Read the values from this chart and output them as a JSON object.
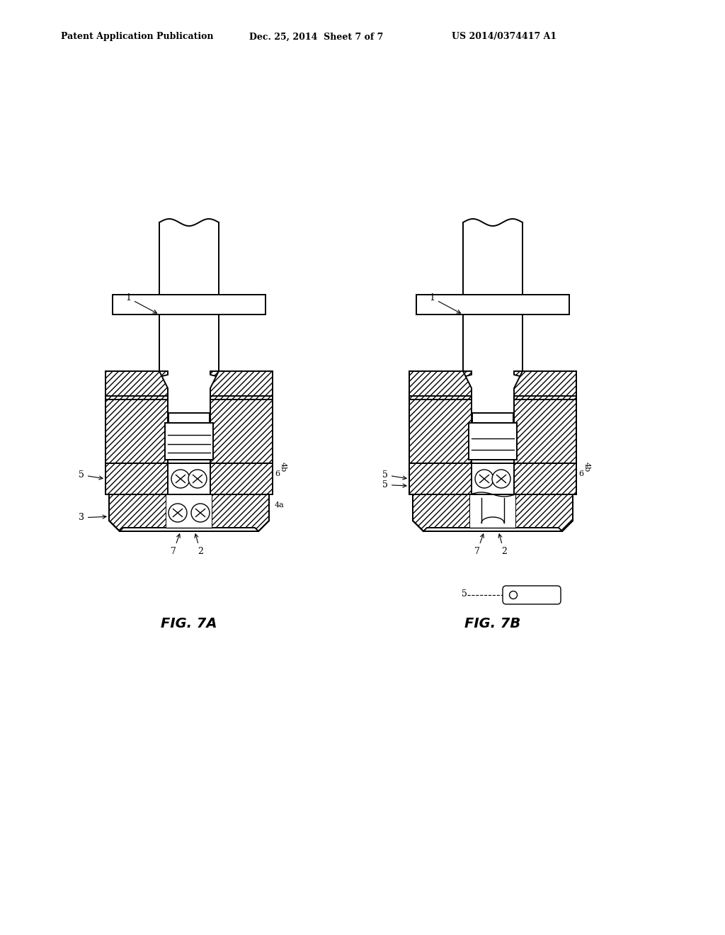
{
  "title_left": "Patent Application Publication",
  "title_center": "Dec. 25, 2014  Sheet 7 of 7",
  "title_right": "US 2014/0374417 A1",
  "fig_label_A": "FIG. 7A",
  "fig_label_B": "FIG. 7B",
  "bg_color": "#ffffff",
  "line_color": "#000000"
}
